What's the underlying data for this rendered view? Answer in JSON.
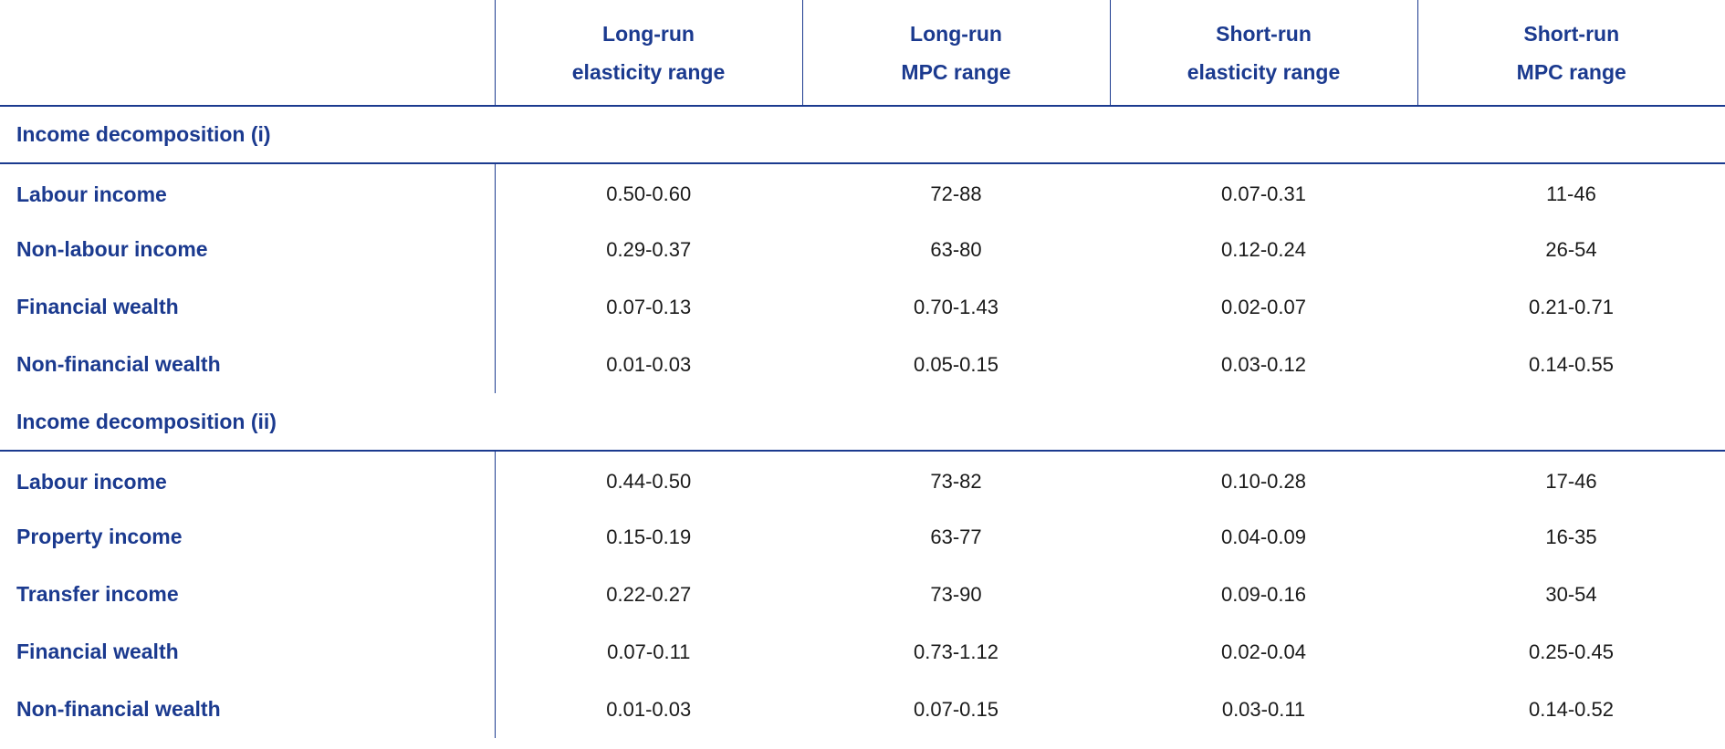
{
  "headers": [
    [
      "Long-run",
      "elasticity range"
    ],
    [
      "Long-run",
      "MPC range"
    ],
    [
      "Short-run",
      "elasticity range"
    ],
    [
      "Short-run",
      "MPC range"
    ]
  ],
  "sections": [
    {
      "title": "Income decomposition (i)",
      "rows": [
        {
          "label": "Labour income",
          "values": [
            "0.50-0.60",
            "72-88",
            "0.07-0.31",
            "11-46"
          ]
        },
        {
          "label": "Non-labour income",
          "values": [
            "0.29-0.37",
            "63-80",
            "0.12-0.24",
            "26-54"
          ]
        },
        {
          "label": "Financial wealth",
          "values": [
            "0.07-0.13",
            "0.70-1.43",
            "0.02-0.07",
            "0.21-0.71"
          ]
        },
        {
          "label": "Non-financial wealth",
          "values": [
            "0.01-0.03",
            "0.05-0.15",
            "0.03-0.12",
            "0.14-0.55"
          ]
        }
      ]
    },
    {
      "title": "Income decomposition (ii)",
      "rows": [
        {
          "label": "Labour income",
          "values": [
            "0.44-0.50",
            "73-82",
            "0.10-0.28",
            "17-46"
          ]
        },
        {
          "label": "Property income",
          "values": [
            "0.15-0.19",
            "63-77",
            "0.04-0.09",
            "16-35"
          ]
        },
        {
          "label": "Transfer income",
          "values": [
            "0.22-0.27",
            "73-90",
            "0.09-0.16",
            "30-54"
          ]
        },
        {
          "label": "Financial wealth",
          "values": [
            "0.07-0.11",
            "0.73-1.12",
            "0.02-0.04",
            "0.25-0.45"
          ]
        },
        {
          "label": "Non-financial wealth",
          "values": [
            "0.01-0.03",
            "0.07-0.15",
            "0.03-0.11",
            "0.14-0.52"
          ]
        }
      ]
    }
  ],
  "colors": {
    "accent": "#1b3a8f",
    "text": "#1a1a1a"
  }
}
